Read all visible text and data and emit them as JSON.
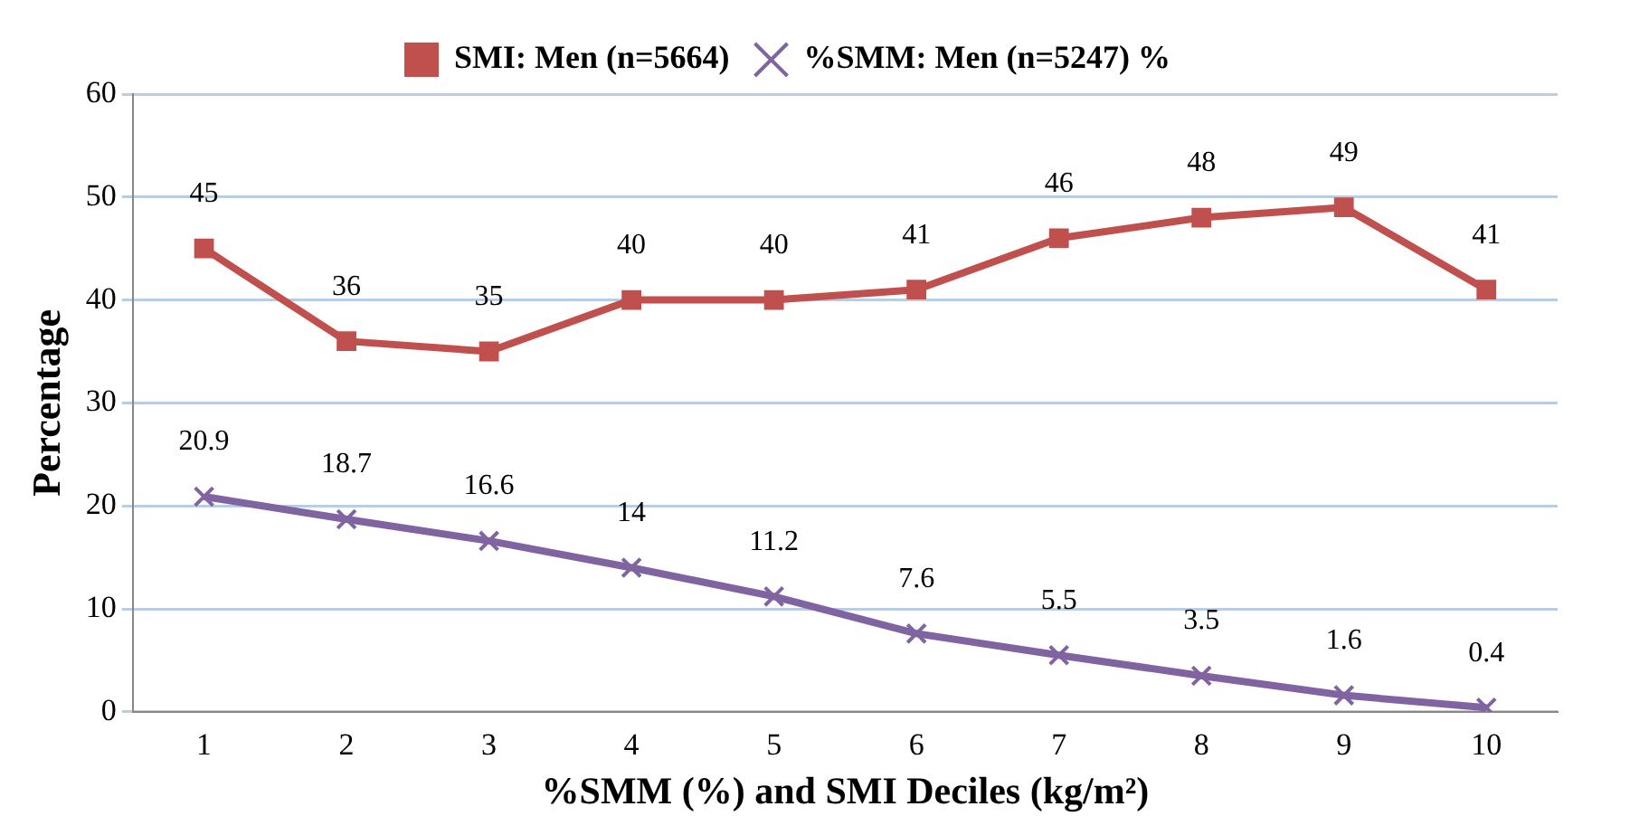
{
  "chart_data": {
    "type": "line",
    "xlabel": "%SMM (%) and SMI Deciles (kg/m²)",
    "ylabel": "Percentage",
    "categories": [
      "1",
      "2",
      "3",
      "4",
      "5",
      "6",
      "7",
      "8",
      "9",
      "10"
    ],
    "series": [
      {
        "name": "SMI: Men (n=5664)",
        "color": "#c0504d",
        "marker": "square",
        "values": [
          45,
          36,
          35,
          40,
          40,
          41,
          46,
          48,
          49,
          41
        ]
      },
      {
        "name": "%SMM: Men (n=5247) %",
        "color": "#8064a2",
        "marker": "cross",
        "values": [
          20.9,
          18.7,
          16.6,
          14,
          11.2,
          7.6,
          5.5,
          3.5,
          1.6,
          0.4
        ]
      }
    ],
    "ylim": [
      0,
      60
    ],
    "yticks": [
      0,
      10,
      20,
      30,
      40,
      50,
      60
    ],
    "grid": "y",
    "legend": "top",
    "data_labels": true,
    "line_style": "solid"
  }
}
